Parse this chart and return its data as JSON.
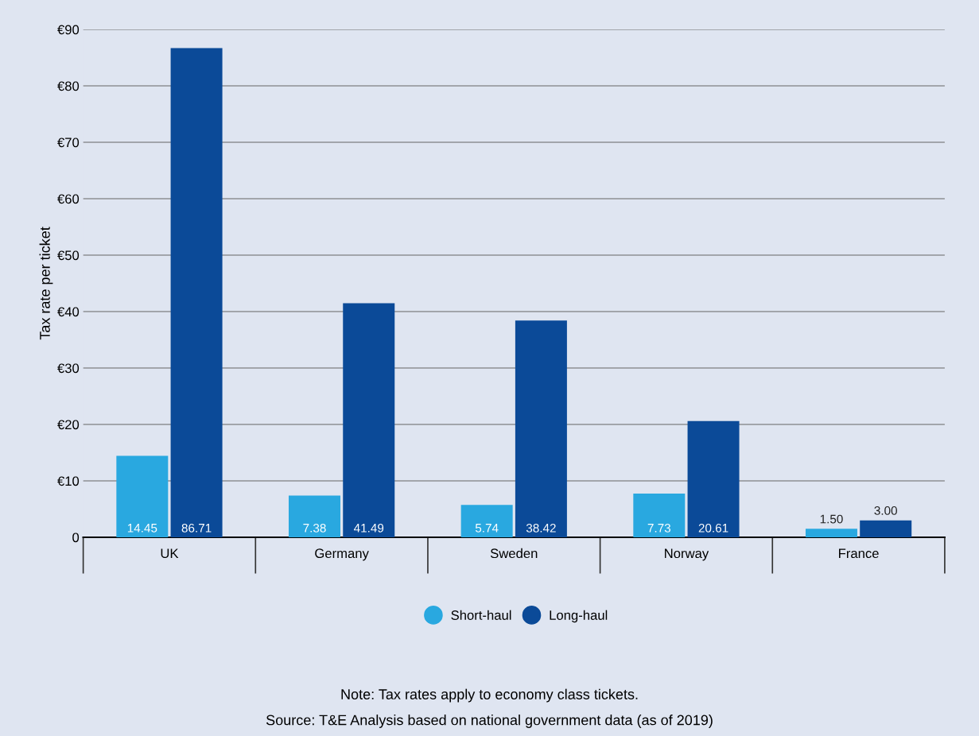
{
  "chart_data": {
    "type": "bar",
    "ylabel": "Tax rate per ticket",
    "categories": [
      "UK",
      "Germany",
      "Sweden",
      "Norway",
      "France"
    ],
    "series": [
      {
        "name": "Short-haul",
        "color": "#29a8e0",
        "values": [
          14.45,
          7.38,
          5.74,
          7.73,
          1.5
        ],
        "value_labels": [
          "14.45",
          "7.38",
          "5.74",
          "7.73",
          "1.50"
        ]
      },
      {
        "name": "Long-haul",
        "color": "#0b4a98",
        "values": [
          86.71,
          41.49,
          38.42,
          20.61,
          3.0
        ],
        "value_labels": [
          "86.71",
          "41.49",
          "38.42",
          "20.61",
          "3.00"
        ]
      }
    ],
    "ylim": [
      0,
      90
    ],
    "yticks": [
      {
        "value": 0,
        "label": "0"
      },
      {
        "value": 10,
        "label": "€10"
      },
      {
        "value": 20,
        "label": "€20"
      },
      {
        "value": 30,
        "label": "€30"
      },
      {
        "value": 40,
        "label": "€40"
      },
      {
        "value": 50,
        "label": "€50"
      },
      {
        "value": 60,
        "label": "€60"
      },
      {
        "value": 70,
        "label": "€70"
      },
      {
        "value": 80,
        "label": "€80"
      },
      {
        "value": 90,
        "label": "€90"
      }
    ],
    "grid": "y",
    "legend": "bottom",
    "annotations": [
      "Note: Tax rates apply to economy class tickets.",
      "Source: T&E Analysis based on national government data (as of 2019)"
    ]
  }
}
